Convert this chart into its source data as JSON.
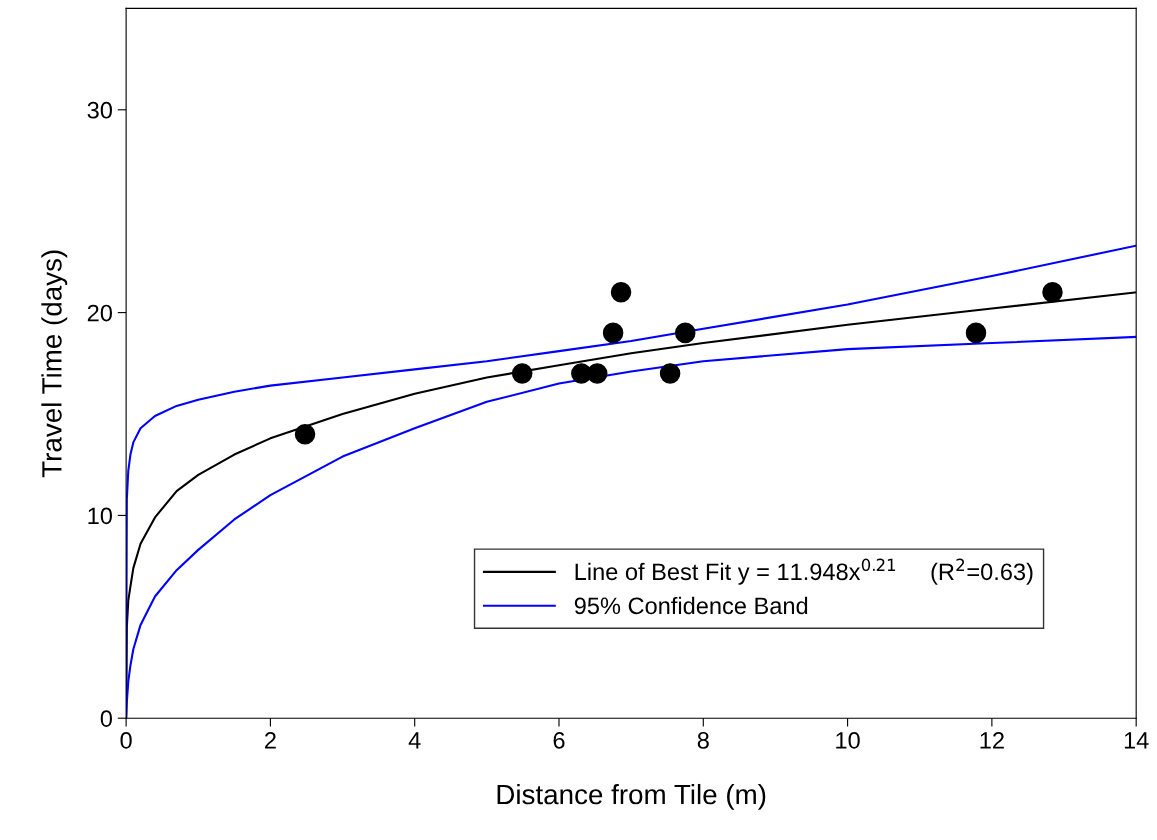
{
  "chart_data": {
    "type": "scatter",
    "xlabel": "Distance from Tile (m)",
    "ylabel": "Travel Time (days)",
    "xlim": [
      0,
      14
    ],
    "ylim": [
      0,
      35
    ],
    "xticks": [
      0,
      2,
      4,
      6,
      8,
      10,
      12,
      14
    ],
    "yticks": [
      0,
      10,
      20,
      30
    ],
    "grid": false,
    "legend": "bottom right",
    "series": [
      {
        "marker": "circle",
        "color": "#000000",
        "x": [
          2.48,
          5.49,
          6.31,
          6.53,
          6.75,
          6.86,
          7.54,
          7.75,
          11.78,
          12.84
        ],
        "values": [
          14,
          17,
          17,
          17,
          19,
          21,
          17,
          19,
          19,
          21
        ]
      },
      {
        "type": "line",
        "marker": "none",
        "name": "Line of Best Fit y = 11.948x$^{0.21}$     (R$^{2}$=0.63)",
        "color": "#000000",
        "x": [
          0,
          0.01,
          0.03,
          0.06,
          0.1,
          0.2,
          0.4,
          0.7,
          1,
          1.5,
          2,
          3,
          4,
          5,
          6,
          7,
          8,
          10,
          12,
          14
        ],
        "values": [
          0,
          4.5,
          5.8,
          6.5,
          7.4,
          8.6,
          9.9,
          11.2,
          12,
          13,
          13.8,
          15,
          16,
          16.8,
          17.4,
          18,
          18.5,
          19.4,
          20.2,
          21
        ]
      },
      {
        "type": "line",
        "marker": "none",
        "name": "95% Confidence Band",
        "color": "#0000ff",
        "x": [
          0,
          0.01,
          0.03,
          0.06,
          0.1,
          0.2,
          0.4,
          0.7,
          1,
          1.5,
          2,
          3,
          4,
          5,
          6,
          7,
          8,
          10,
          12,
          14
        ],
        "values": [
          0,
          10.8,
          12.2,
          13,
          13.6,
          14.3,
          14.9,
          15.4,
          15.7,
          16.1,
          16.4,
          16.8,
          17.2,
          17.6,
          18.1,
          18.6,
          19.2,
          20.4,
          21.8,
          23.3
        ]
      },
      {
        "type": "line",
        "marker": "none",
        "color": "#0000ff",
        "x": [
          0,
          0.01,
          0.03,
          0.06,
          0.1,
          0.2,
          0.4,
          0.7,
          1,
          1.5,
          2,
          3,
          4,
          5,
          6,
          7,
          8,
          10,
          12,
          14
        ],
        "values": [
          0,
          0.8,
          1.8,
          2.6,
          3.4,
          4.6,
          6,
          7.3,
          8.3,
          9.8,
          11,
          12.9,
          14.3,
          15.6,
          16.5,
          17.1,
          17.6,
          18.2,
          18.5,
          18.8
        ]
      }
    ]
  }
}
